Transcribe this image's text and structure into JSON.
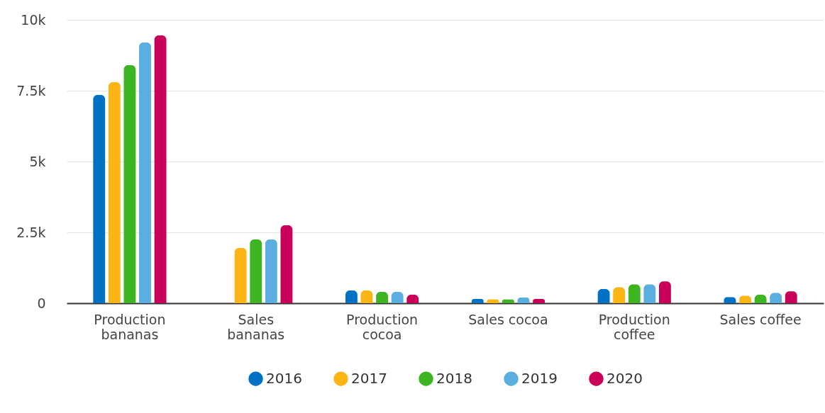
{
  "chart_data": {
    "type": "bar",
    "categories": [
      "Production bananas",
      "Sales bananas",
      "Production cocoa",
      "Sales cocoa",
      "Production coffee",
      "Sales coffee"
    ],
    "series": [
      {
        "name": "2016",
        "color": "#0072c6",
        "values": [
          7350,
          null,
          450,
          150,
          500,
          210
        ]
      },
      {
        "name": "2017",
        "color": "#fdb515",
        "values": [
          7800,
          1950,
          450,
          130,
          560,
          260
        ]
      },
      {
        "name": "2018",
        "color": "#3cb521",
        "values": [
          8400,
          2250,
          400,
          130,
          660,
          300
        ]
      },
      {
        "name": "2019",
        "color": "#5aafe0",
        "values": [
          9200,
          2250,
          400,
          200,
          660,
          360
        ]
      },
      {
        "name": "2020",
        "color": "#c8005a",
        "values": [
          9450,
          2750,
          300,
          150,
          770,
          420
        ]
      }
    ],
    "ylim": [
      0,
      10000
    ],
    "yticks": [
      {
        "value": 0,
        "label": "0"
      },
      {
        "value": 2500,
        "label": "2.5k"
      },
      {
        "value": 5000,
        "label": "5k"
      },
      {
        "value": 7500,
        "label": "7.5k"
      },
      {
        "value": 10000,
        "label": "10k"
      }
    ],
    "grid": "y",
    "legend": "bottom"
  }
}
